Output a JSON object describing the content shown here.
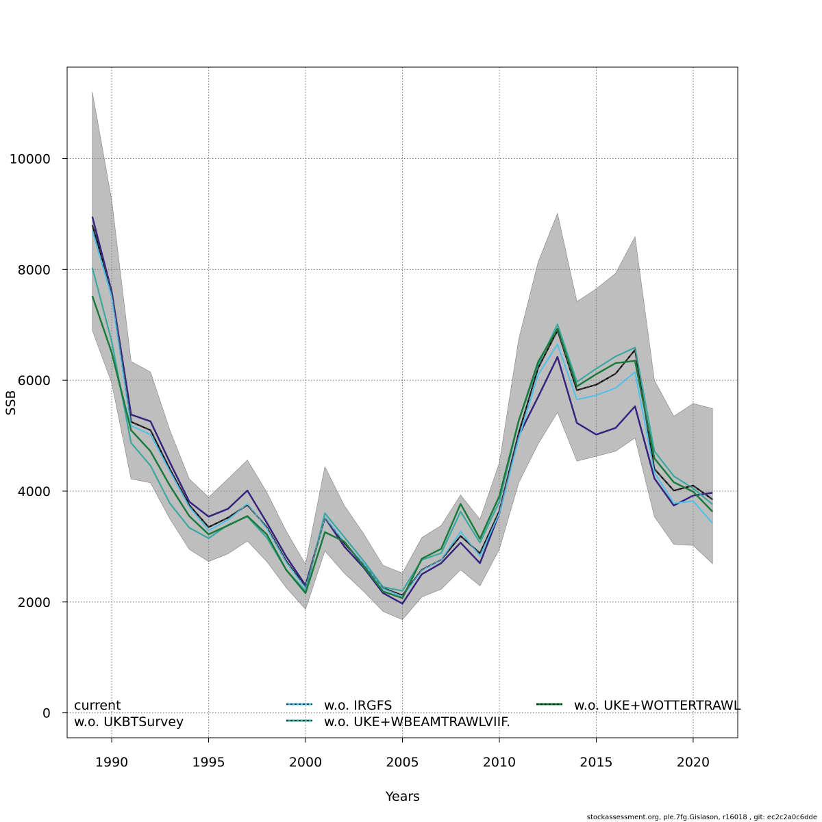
{
  "chart_data": {
    "type": "line",
    "xlabel": "Years",
    "ylabel": "SSB",
    "xlim": [
      1987.7,
      2022.3
    ],
    "ylim": [
      -450,
      11650
    ],
    "x_ticks": [
      1990,
      1995,
      2000,
      2005,
      2010,
      2015,
      2020
    ],
    "y_ticks": [
      0,
      2000,
      4000,
      6000,
      8000,
      10000
    ],
    "grid": true,
    "x": [
      1989,
      1990,
      1991,
      1992,
      1993,
      1994,
      1995,
      1996,
      1997,
      1998,
      1999,
      2000,
      2001,
      2002,
      2003,
      2004,
      2005,
      2006,
      2007,
      2008,
      2009,
      2010,
      2011,
      2012,
      2013,
      2014,
      2015,
      2016,
      2017,
      2018,
      2019,
      2020,
      2021
    ],
    "band": {
      "lower": [
        6900,
        5950,
        4220,
        4150,
        3500,
        2950,
        2730,
        2870,
        3100,
        2730,
        2260,
        1870,
        2920,
        2520,
        2190,
        1830,
        1680,
        2090,
        2230,
        2580,
        2290,
        2950,
        4150,
        4850,
        5420,
        4540,
        4630,
        4720,
        4960,
        3540,
        3040,
        3020,
        2690
      ],
      "upper": [
        11200,
        9250,
        6340,
        6150,
        5100,
        4220,
        3890,
        4220,
        4560,
        3980,
        3280,
        2680,
        4440,
        3740,
        3230,
        2660,
        2520,
        3160,
        3380,
        3930,
        3490,
        4510,
        6740,
        8130,
        9010,
        7420,
        7650,
        7930,
        8590,
        6000,
        5350,
        5580,
        5490
      ],
      "color": "#bebebe"
    },
    "series": [
      {
        "name": "current",
        "color": "#000000",
        "dash": "",
        "width": 2.2,
        "values": [
          8800,
          7600,
          5250,
          5100,
          4400,
          3750,
          3350,
          3520,
          3750,
          3350,
          2740,
          2270,
          3520,
          3060,
          2680,
          2250,
          2120,
          2580,
          2760,
          3190,
          2880,
          3640,
          5050,
          6220,
          6900,
          5820,
          5920,
          6120,
          6550,
          4400,
          4010,
          4100,
          3850
        ]
      },
      {
        "name": "w.o. UKBTSurvey",
        "color": "#36237e",
        "dash": "",
        "width": 2.5,
        "values": [
          8950,
          7600,
          5380,
          5260,
          4520,
          3810,
          3540,
          3680,
          4010,
          3430,
          2820,
          2300,
          3520,
          3000,
          2620,
          2160,
          1970,
          2500,
          2700,
          3070,
          2700,
          3600,
          5000,
          5700,
          6420,
          5230,
          5020,
          5140,
          5530,
          4230,
          3740,
          3920,
          3970
        ]
      },
      {
        "name": "w.o. IRGFS",
        "color": "#4fc1e9",
        "dash": "",
        "width": 2,
        "values": [
          8700,
          7500,
          5180,
          5020,
          4360,
          3720,
          3290,
          3480,
          3770,
          3330,
          2720,
          2250,
          3530,
          3080,
          2690,
          2240,
          2100,
          2570,
          2760,
          3270,
          2830,
          3600,
          4950,
          6100,
          6650,
          5650,
          5730,
          5860,
          6150,
          4340,
          3780,
          3820,
          3420
        ]
      },
      {
        "name": "w.o. UKE+WBEAMTRAWLVIIF.",
        "color": "#3aa8a0",
        "dash": "",
        "width": 2.2,
        "values": [
          8030,
          6700,
          4870,
          4460,
          3780,
          3340,
          3150,
          3390,
          3540,
          3160,
          2580,
          2200,
          3600,
          3170,
          2740,
          2270,
          2200,
          2760,
          2880,
          3630,
          3070,
          3810,
          5270,
          6280,
          7010,
          5970,
          6210,
          6430,
          6590,
          4720,
          4270,
          4050,
          3760
        ]
      },
      {
        "name": "w.o. UKE+WOTTERTRAWL",
        "color": "#1a7a3c",
        "dash": "",
        "width": 2.5,
        "values": [
          7520,
          6500,
          5100,
          4720,
          4100,
          3550,
          3220,
          3380,
          3550,
          3220,
          2580,
          2160,
          3260,
          3090,
          2640,
          2190,
          2070,
          2780,
          2960,
          3770,
          3140,
          3910,
          5270,
          6330,
          6930,
          5890,
          6110,
          6310,
          6350,
          4590,
          4160,
          3990,
          3630
        ]
      }
    ],
    "legend": [
      {
        "label": "current",
        "color": "#000000",
        "dash": ""
      },
      {
        "label": "w.o. UKBTSurvey",
        "color": "#36237e",
        "dash": ""
      },
      {
        "label": "w.o. IRGFS",
        "color": "#4fc1e9",
        "dash": "3,3",
        "overlay": "#000000"
      },
      {
        "label": "w.o. UKE+WBEAMTRAWLVIIF.",
        "color": "#3aa8a0",
        "dash": "3,3",
        "overlay": "#000000"
      },
      {
        "label": "w.o. UKE+WOTTERTRAWL",
        "color": "#1a7a3c",
        "dash": "3,3",
        "overlay": "#000000"
      }
    ],
    "legend_placement": "bottom",
    "footer": "stockassessment.org, ple.7fg.Gislason, r16018 , git: ec2c2a0c6dde"
  }
}
